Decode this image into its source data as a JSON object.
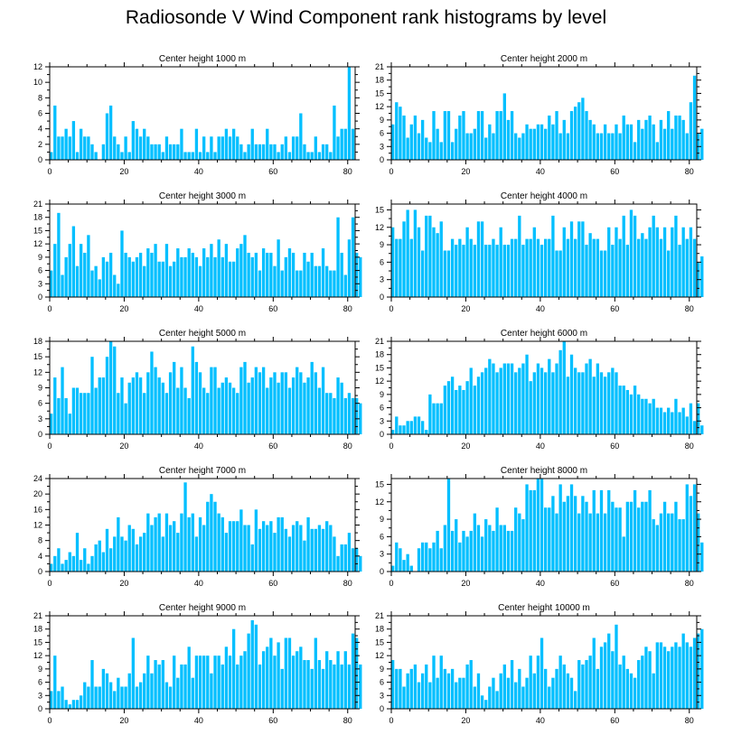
{
  "title": "Radiosonde V Wind Component rank histograms by level",
  "colors": {
    "bar": "#00BFFF",
    "axis": "#000000"
  },
  "chart_data": [
    {
      "type": "bar",
      "title": "Center height 1000 m",
      "xlim": [
        0,
        82
      ],
      "ylim": [
        0,
        12
      ],
      "xticks": [
        0,
        20,
        40,
        60,
        80
      ],
      "yticks": [
        0,
        2,
        4,
        6,
        8,
        10,
        12
      ],
      "values": [
        1,
        7,
        3,
        3,
        4,
        3,
        5,
        1,
        4,
        3,
        3,
        2,
        1,
        0,
        2,
        6,
        7,
        3,
        2,
        1,
        3,
        1,
        5,
        4,
        3,
        4,
        3,
        2,
        2,
        2,
        1,
        3,
        2,
        2,
        2,
        4,
        1,
        1,
        1,
        4,
        1,
        3,
        1,
        3,
        1,
        3,
        3,
        4,
        3,
        4,
        3,
        2,
        1,
        2,
        4,
        2,
        2,
        2,
        4,
        2,
        2,
        1,
        2,
        3,
        1,
        3,
        3,
        6,
        2,
        1,
        1,
        3,
        1,
        2,
        2,
        1,
        7,
        3,
        4,
        4,
        12,
        4
      ]
    },
    {
      "type": "bar",
      "title": "Center height 2000 m",
      "xlim": [
        0,
        82
      ],
      "ylim": [
        0,
        21
      ],
      "xticks": [
        0,
        20,
        40,
        60,
        80
      ],
      "yticks": [
        0,
        3,
        6,
        9,
        12,
        15,
        18,
        21
      ],
      "values": [
        8,
        13,
        12,
        10,
        5,
        8,
        10,
        6,
        9,
        5,
        4,
        11,
        7,
        4,
        11,
        11,
        4,
        7,
        10,
        11,
        6,
        6,
        7,
        11,
        11,
        5,
        8,
        6,
        11,
        11,
        15,
        9,
        11,
        6,
        5,
        6,
        8,
        7,
        7,
        8,
        8,
        7,
        10,
        8,
        11,
        6,
        9,
        6,
        11,
        12,
        13,
        14,
        11,
        9,
        8,
        6,
        6,
        8,
        6,
        6,
        8,
        6,
        10,
        8,
        8,
        4,
        9,
        7,
        9,
        10,
        8,
        4,
        9,
        7,
        11,
        7,
        10,
        10,
        9,
        6,
        13,
        19,
        6,
        7
      ]
    },
    {
      "type": "bar",
      "title": "Center height 3000 m",
      "xlim": [
        0,
        82
      ],
      "ylim": [
        0,
        21
      ],
      "xticks": [
        0,
        20,
        40,
        60,
        80
      ],
      "yticks": [
        0,
        3,
        6,
        9,
        12,
        15,
        18,
        21
      ],
      "values": [
        6,
        12,
        19,
        5,
        9,
        12,
        16,
        7,
        12,
        10,
        14,
        6,
        7,
        4,
        9,
        8,
        10,
        5,
        3,
        15,
        10,
        9,
        8,
        9,
        10,
        7,
        11,
        10,
        12,
        8,
        8,
        12,
        7,
        8,
        11,
        9,
        9,
        11,
        10,
        9,
        7,
        11,
        9,
        12,
        9,
        13,
        9,
        12,
        8,
        8,
        11,
        12,
        14,
        10,
        9,
        10,
        6,
        11,
        10,
        10,
        7,
        13,
        6,
        9,
        11,
        10,
        6,
        6,
        10,
        8,
        10,
        7,
        7,
        11,
        7,
        6,
        6,
        18,
        10,
        5,
        13,
        18,
        10,
        9
      ]
    },
    {
      "type": "bar",
      "title": "Center height 4000 m",
      "xlim": [
        0,
        82
      ],
      "ylim": [
        0,
        16
      ],
      "xticks": [
        0,
        20,
        40,
        60,
        80
      ],
      "yticks": [
        0,
        3,
        6,
        9,
        12,
        15
      ],
      "values": [
        12,
        10,
        10,
        13,
        15,
        10,
        15,
        12,
        8,
        14,
        14,
        12,
        11,
        13,
        8,
        8,
        10,
        9,
        10,
        9,
        12,
        10,
        9,
        13,
        13,
        9,
        9,
        10,
        9,
        12,
        9,
        9,
        10,
        10,
        14,
        9,
        10,
        10,
        12,
        10,
        9,
        10,
        10,
        14,
        8,
        8,
        12,
        10,
        13,
        10,
        13,
        13,
        9,
        11,
        10,
        10,
        8,
        8,
        12,
        9,
        12,
        10,
        14,
        9,
        15,
        14,
        10,
        11,
        10,
        12,
        14,
        12,
        10,
        12,
        8,
        12,
        14,
        9,
        12,
        10,
        12,
        10,
        6,
        7
      ]
    },
    {
      "type": "bar",
      "title": "Center height 5000 m",
      "xlim": [
        0,
        82
      ],
      "ylim": [
        0,
        18
      ],
      "xticks": [
        0,
        20,
        40,
        60,
        80
      ],
      "yticks": [
        0,
        3,
        6,
        9,
        12,
        15,
        18
      ],
      "values": [
        4,
        11,
        7,
        13,
        7,
        4,
        9,
        9,
        8,
        8,
        8,
        15,
        9,
        11,
        11,
        15,
        18,
        17,
        8,
        11,
        6,
        10,
        11,
        12,
        11,
        8,
        12,
        16,
        13,
        11,
        10,
        8,
        12,
        14,
        9,
        13,
        9,
        7,
        17,
        14,
        12,
        9,
        8,
        13,
        13,
        9,
        10,
        11,
        10,
        9,
        8,
        13,
        14,
        10,
        11,
        13,
        12,
        13,
        9,
        11,
        12,
        10,
        12,
        12,
        9,
        11,
        13,
        12,
        10,
        11,
        14,
        12,
        9,
        13,
        8,
        8,
        7,
        11,
        10,
        7,
        8,
        7,
        7,
        6
      ]
    },
    {
      "type": "bar",
      "title": "Center height 6000 m",
      "xlim": [
        0,
        82
      ],
      "ylim": [
        0,
        21
      ],
      "xticks": [
        0,
        20,
        40,
        60,
        80
      ],
      "yticks": [
        0,
        3,
        6,
        9,
        12,
        15,
        18,
        21
      ],
      "values": [
        1,
        4,
        2,
        2,
        3,
        3,
        4,
        4,
        3,
        1,
        9,
        7,
        7,
        7,
        11,
        12,
        13,
        10,
        11,
        10,
        12,
        15,
        11,
        13,
        14,
        15,
        17,
        16,
        14,
        15,
        16,
        16,
        16,
        14,
        15,
        16,
        18,
        12,
        14,
        16,
        15,
        14,
        17,
        14,
        16,
        19,
        21,
        13,
        18,
        15,
        14,
        14,
        16,
        17,
        13,
        16,
        14,
        13,
        14,
        15,
        14,
        11,
        11,
        10,
        9,
        11,
        9,
        8,
        8,
        7,
        8,
        6,
        6,
        5,
        6,
        5,
        8,
        5,
        6,
        4,
        7,
        3,
        7,
        2
      ]
    },
    {
      "type": "bar",
      "title": "Center height 7000 m",
      "xlim": [
        0,
        82
      ],
      "ylim": [
        0,
        24
      ],
      "xticks": [
        0,
        20,
        40,
        60,
        80
      ],
      "yticks": [
        0,
        4,
        8,
        12,
        16,
        20,
        24
      ],
      "values": [
        2,
        4,
        6,
        2,
        3,
        5,
        4,
        10,
        3,
        6,
        2,
        4,
        7,
        8,
        5,
        11,
        6,
        9,
        14,
        9,
        8,
        12,
        11,
        7,
        9,
        10,
        15,
        12,
        14,
        15,
        9,
        15,
        12,
        13,
        10,
        15,
        23,
        14,
        15,
        9,
        14,
        12,
        18,
        20,
        18,
        15,
        14,
        10,
        13,
        13,
        13,
        16,
        12,
        12,
        7,
        16,
        11,
        13,
        12,
        13,
        10,
        14,
        14,
        11,
        9,
        12,
        13,
        12,
        8,
        14,
        11,
        11,
        12,
        11,
        13,
        12,
        9,
        4,
        7,
        7,
        10,
        6,
        6,
        4
      ]
    },
    {
      "type": "bar",
      "title": "Center height 8000 m",
      "xlim": [
        0,
        82
      ],
      "ylim": [
        0,
        16
      ],
      "xticks": [
        0,
        20,
        40,
        60,
        80
      ],
      "yticks": [
        0,
        3,
        6,
        9,
        12,
        15
      ],
      "values": [
        1,
        5,
        4,
        2,
        3,
        1,
        0,
        4,
        5,
        5,
        4,
        5,
        7,
        4,
        8,
        16,
        7,
        9,
        5,
        7,
        6,
        7,
        10,
        8,
        6,
        9,
        8,
        7,
        11,
        8,
        8,
        7,
        7,
        11,
        10,
        9,
        15,
        14,
        14,
        16,
        16,
        11,
        11,
        13,
        10,
        15,
        12,
        13,
        15,
        13,
        10,
        13,
        12,
        10,
        14,
        10,
        14,
        10,
        14,
        12,
        11,
        11,
        6,
        12,
        12,
        14,
        11,
        12,
        12,
        14,
        9,
        8,
        10,
        12,
        10,
        10,
        12,
        9,
        9,
        15,
        13,
        15,
        10,
        5
      ]
    },
    {
      "type": "bar",
      "title": "Center height 9000 m",
      "xlim": [
        0,
        82
      ],
      "ylim": [
        0,
        21
      ],
      "xticks": [
        0,
        20,
        40,
        60,
        80
      ],
      "yticks": [
        0,
        3,
        6,
        9,
        12,
        15,
        18,
        21
      ],
      "values": [
        4,
        12,
        4,
        5,
        2,
        1,
        2,
        2,
        3,
        6,
        5,
        11,
        5,
        5,
        9,
        8,
        6,
        4,
        7,
        5,
        5,
        8,
        16,
        5,
        6,
        8,
        12,
        8,
        11,
        10,
        11,
        6,
        5,
        12,
        7,
        10,
        10,
        14,
        7,
        12,
        12,
        12,
        12,
        8,
        12,
        12,
        10,
        14,
        12,
        18,
        10,
        12,
        13,
        17,
        20,
        19,
        10,
        13,
        14,
        16,
        12,
        15,
        9,
        16,
        16,
        12,
        13,
        14,
        11,
        11,
        9,
        16,
        11,
        9,
        13,
        11,
        10,
        13,
        10,
        13,
        10,
        17,
        16,
        10
      ]
    },
    {
      "type": "bar",
      "title": "Center height 10000 m",
      "xlim": [
        0,
        82
      ],
      "ylim": [
        0,
        21
      ],
      "xticks": [
        0,
        20,
        40,
        60,
        80
      ],
      "yticks": [
        0,
        3,
        6,
        9,
        12,
        15,
        18,
        21
      ],
      "values": [
        11,
        9,
        9,
        5,
        8,
        9,
        10,
        6,
        8,
        10,
        6,
        12,
        7,
        12,
        9,
        8,
        9,
        6,
        7,
        7,
        10,
        11,
        5,
        8,
        3,
        2,
        5,
        7,
        4,
        8,
        10,
        7,
        11,
        6,
        9,
        5,
        7,
        12,
        8,
        12,
        16,
        9,
        5,
        7,
        9,
        12,
        10,
        8,
        7,
        4,
        11,
        10,
        11,
        12,
        16,
        9,
        14,
        15,
        17,
        13,
        19,
        10,
        12,
        9,
        8,
        7,
        11,
        12,
        14,
        13,
        8,
        15,
        15,
        14,
        13,
        14,
        15,
        14,
        17,
        15,
        14,
        16,
        17,
        18
      ]
    }
  ]
}
